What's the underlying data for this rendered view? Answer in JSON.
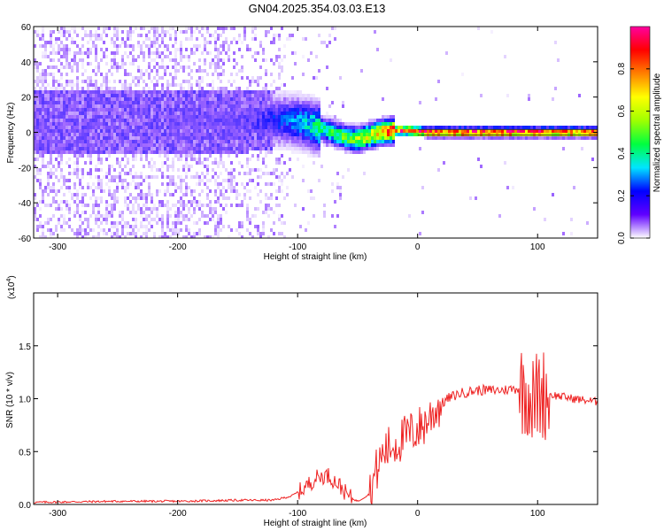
{
  "title": "GN04.2025.354.03.03.E13",
  "chart_data": [
    {
      "type": "heatmap",
      "xlabel": "Height of straight line (km)",
      "ylabel": "Frequency (Hz)",
      "xlim": [
        -320,
        150
      ],
      "ylim": [
        -60,
        60
      ],
      "x_ticks": [
        -300,
        -200,
        -100,
        0,
        100
      ],
      "y_ticks": [
        -60,
        -40,
        -20,
        0,
        20,
        40,
        60
      ],
      "colorbar": {
        "label": "Normalized spectral amplitude",
        "range": [
          0.0,
          1.0
        ],
        "ticks": [
          0.0,
          0.2,
          0.4,
          0.6,
          0.8
        ],
        "colors": [
          "#ffffff",
          "#6000ff",
          "#0000ff",
          "#00e5ff",
          "#00ff40",
          "#a0ff00",
          "#ffff00",
          "#ff8000",
          "#ff0000",
          "#ff00a0"
        ]
      },
      "ridge": {
        "x": [
          -320,
          -250,
          -200,
          -150,
          -120,
          -100,
          -80,
          -60,
          -50,
          -40,
          -30,
          -20,
          -10,
          0,
          10,
          20,
          150
        ],
        "frequency": [
          6,
          6,
          6,
          6,
          7,
          6,
          2,
          -3,
          -4,
          -2,
          0,
          1,
          1,
          0.5,
          0,
          0,
          0
        ],
        "amplitude": [
          0.05,
          0.08,
          0.12,
          0.15,
          0.22,
          0.3,
          0.42,
          0.5,
          0.6,
          0.65,
          0.75,
          0.85,
          0.9,
          0.92,
          0.95,
          0.95,
          0.95
        ]
      },
      "grid": false
    },
    {
      "type": "line",
      "xlabel": "Height of straight line (km)",
      "ylabel": "SNR (10 * v/v)",
      "y_multiplier": "(x10",
      "y_multiplier_exp": "4",
      "y_multiplier_close": ")",
      "xlim": [
        -320,
        150
      ],
      "ylim": [
        0,
        2.0
      ],
      "x_ticks": [
        -300,
        -200,
        -100,
        0,
        100
      ],
      "y_ticks": [
        "0.0",
        "0.5",
        "1.0",
        "1.5"
      ],
      "series": [
        {
          "color": "#ee2222",
          "x": [
            -320,
            -250,
            -200,
            -150,
            -120,
            -105,
            -95,
            -85,
            -75,
            -65,
            -58,
            -50,
            -40,
            -35,
            -28,
            -22,
            -15,
            -5,
            5,
            15,
            25,
            35,
            50,
            70,
            85,
            92,
            97,
            100,
            105,
            115,
            130,
            150
          ],
          "y": [
            0.02,
            0.03,
            0.03,
            0.04,
            0.04,
            0.08,
            0.15,
            0.25,
            0.28,
            0.18,
            0.08,
            0.03,
            0.1,
            0.3,
            0.5,
            0.55,
            0.6,
            0.68,
            0.75,
            0.9,
            1.0,
            1.05,
            1.08,
            1.08,
            1.1,
            1.08,
            0.95,
            1.05,
            1.05,
            1.03,
            1.0,
            0.97
          ]
        }
      ],
      "grid": false
    }
  ]
}
